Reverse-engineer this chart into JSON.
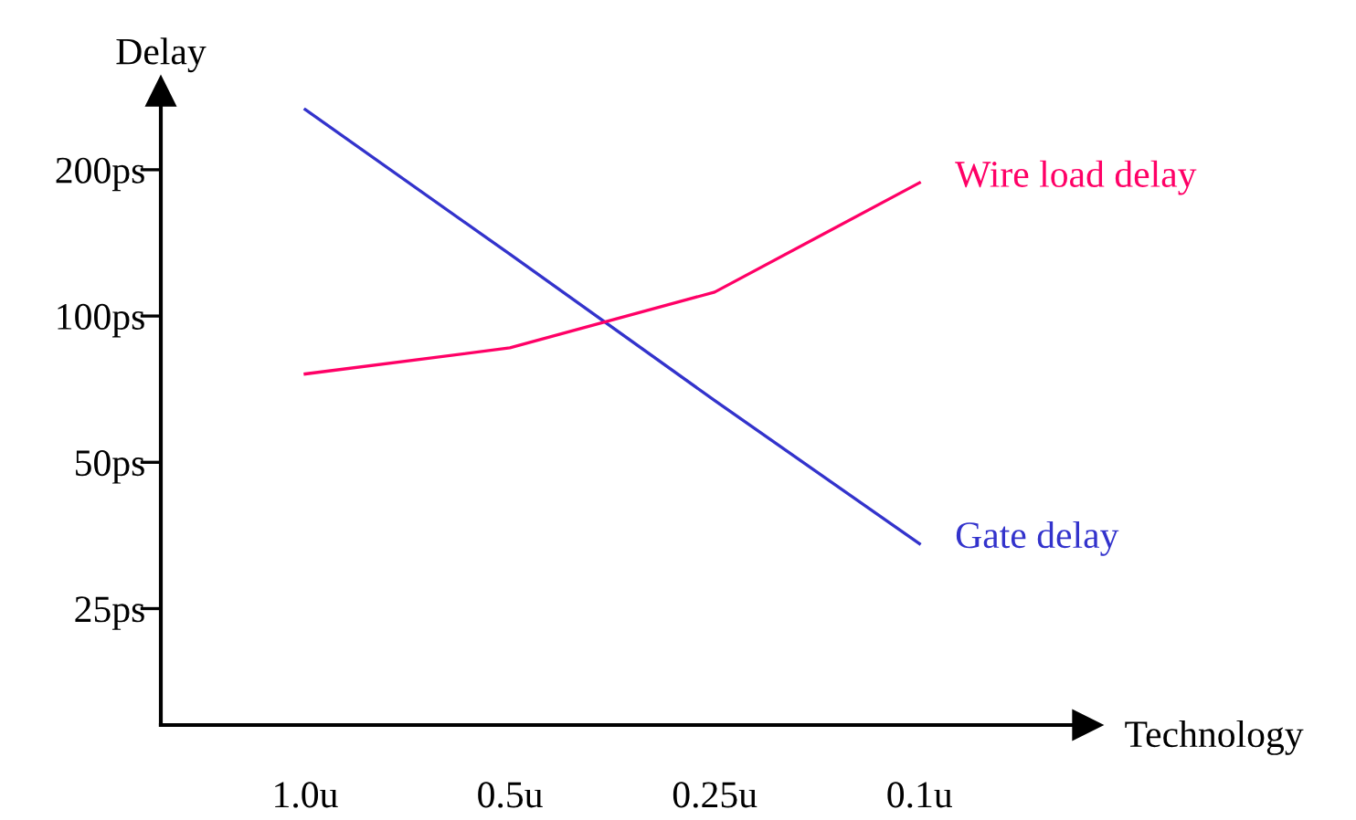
{
  "chart_data": {
    "type": "line",
    "xlabel": "Technology",
    "ylabel": "Delay",
    "categories": [
      "1.0u",
      "0.5u",
      "0.25u",
      "0.1u"
    ],
    "series": [
      {
        "name": "Gate delay",
        "color": "#3333cc",
        "values": [
          266,
          134,
          67,
          34
        ]
      },
      {
        "name": "Wire load delay",
        "color": "#ff0066",
        "values": [
          76,
          86,
          112,
          188
        ]
      }
    ],
    "log": true,
    "ylim": [
      14.4,
      290
    ],
    "yticks": [
      {
        "value": 25,
        "label": "25ps"
      },
      {
        "value": 50,
        "label": "50ps"
      },
      {
        "value": 100,
        "label": "100ps"
      },
      {
        "value": 200,
        "label": "200ps"
      }
    ],
    "grid": false,
    "legend": false,
    "line_style": "solid",
    "marker": "none"
  }
}
